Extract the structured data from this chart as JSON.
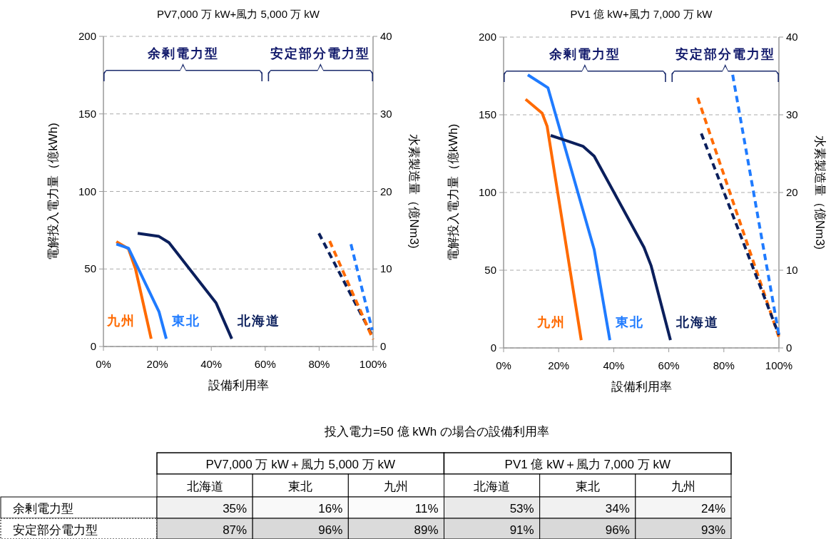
{
  "chart_data": [
    {
      "type": "line",
      "title": "PV7,000 万 kW+風力 5,000 万 kW",
      "xlabel": "設備利用率",
      "ylabel": "電解投入電力量（億kWh)",
      "y2label": "水素製造量（億Nm3)",
      "xlim": [
        0,
        100
      ],
      "xticks": [
        {
          "value": 0,
          "label": "0%"
        },
        {
          "value": 20,
          "label": "20%"
        },
        {
          "value": 40,
          "label": "40%"
        },
        {
          "value": 60,
          "label": "60%"
        },
        {
          "value": 80,
          "label": "80%"
        },
        {
          "value": 100,
          "label": "100%"
        }
      ],
      "ylim": [
        0,
        200
      ],
      "yticks": [
        0,
        50,
        100,
        150,
        200
      ],
      "y2lim": [
        0,
        40
      ],
      "y2ticks": [
        0,
        10,
        20,
        30,
        40
      ],
      "grid": "y",
      "annotations": [
        "余剰電力型",
        "安定部分電力型"
      ],
      "series": [
        {
          "name": "九州",
          "color": "#ff6a00",
          "x": [
            4.8,
            9.3,
            11.9,
            17.7
          ],
          "values": [
            67.6,
            63,
            50,
            5
          ]
        },
        {
          "name": "東北",
          "color": "#1f7bff",
          "x": [
            4.8,
            9.3,
            20.6,
            23.3
          ],
          "values": [
            66,
            63.4,
            22.5,
            5
          ]
        },
        {
          "name": "北海道",
          "color": "#0b1f5c",
          "x": [
            12.7,
            20.6,
            24.3,
            41.8,
            47.6
          ],
          "values": [
            73,
            71,
            67,
            28,
            5
          ]
        },
        {
          "color": "#0b1f5c",
          "line_style": "dashed",
          "x": [
            79.9,
            100
          ],
          "values": [
            73,
            6
          ]
        },
        {
          "color": "#ff6a00",
          "line_style": "dashed",
          "x": [
            83.9,
            100
          ],
          "values": [
            68,
            4.6
          ]
        },
        {
          "color": "#1f7bff",
          "line_style": "dashed",
          "x": [
            91.8,
            99.7
          ],
          "values": [
            66,
            10.6
          ]
        }
      ]
    },
    {
      "type": "line",
      "title": "PV1 億 kW+風力 7,000 万 kW",
      "xlabel": "設備利用率",
      "ylabel": "電解投入電力量（億kWh)",
      "y2label": "水素製造量（億Nm3)",
      "xlim": [
        0,
        100
      ],
      "xticks": [
        {
          "value": 0,
          "label": "0%"
        },
        {
          "value": 20,
          "label": "20%"
        },
        {
          "value": 40,
          "label": "40%"
        },
        {
          "value": 60,
          "label": "60%"
        },
        {
          "value": 80,
          "label": "80%"
        },
        {
          "value": 100,
          "label": "100%"
        }
      ],
      "ylim": [
        0,
        200
      ],
      "yticks": [
        0,
        50,
        100,
        150,
        200
      ],
      "y2lim": [
        0,
        40
      ],
      "y2ticks": [
        0,
        10,
        20,
        30,
        40
      ],
      "grid": "y",
      "annotations": [
        "余剰電力型",
        "安定部分電力型"
      ],
      "series": [
        {
          "name": "九州",
          "color": "#ff6a00",
          "x": [
            8,
            14,
            15.8,
            28.2
          ],
          "values": [
            160,
            151,
            142.7,
            5
          ]
        },
        {
          "name": "東北",
          "color": "#1f7bff",
          "x": [
            8.8,
            16.1,
            32.9,
            38.6
          ],
          "values": [
            175.7,
            167.4,
            63.3,
            5
          ]
        },
        {
          "name": "北海道",
          "color": "#0b1f5c",
          "x": [
            17.1,
            22.5,
            28.8,
            32.9,
            51,
            53.6,
            60.6
          ],
          "values": [
            136.7,
            133.5,
            129.8,
            123.4,
            64.7,
            52.8,
            5
          ]
        },
        {
          "color": "#ff6a00",
          "line_style": "dashed",
          "x": [
            70.5,
            100
          ],
          "values": [
            161,
            7
          ]
        },
        {
          "color": "#0b1f5c",
          "line_style": "dashed",
          "x": [
            71.8,
            100
          ],
          "values": [
            138,
            8.3
          ]
        },
        {
          "color": "#1f7bff",
          "line_style": "dashed",
          "x": [
            83.2,
            100
          ],
          "values": [
            175.7,
            8.3
          ]
        }
      ]
    },
    {
      "type": "heatmap",
      "title": "投入電力=50 億 kWh の場合の設備利用率",
      "annotations": [
        "PV7,000 万 kW＋風力 5,000 万 kW",
        "PV1 億 kW＋風力 7,000 万 kW"
      ],
      "categories": [
        "北海道",
        "東北",
        "九州",
        "北海道",
        "東北",
        "九州"
      ],
      "y_categories": [
        "余剰電力型",
        "安定部分電力型"
      ],
      "cells": [
        [
          35,
          16,
          11,
          53,
          34,
          24
        ],
        [
          87,
          96,
          89,
          91,
          96,
          93
        ]
      ],
      "cell_labels": [
        [
          "35%",
          "16%",
          "11%",
          "53%",
          "34%",
          "24%"
        ],
        [
          "87%",
          "96%",
          "89%",
          "91%",
          "96%",
          "93%"
        ]
      ]
    }
  ]
}
